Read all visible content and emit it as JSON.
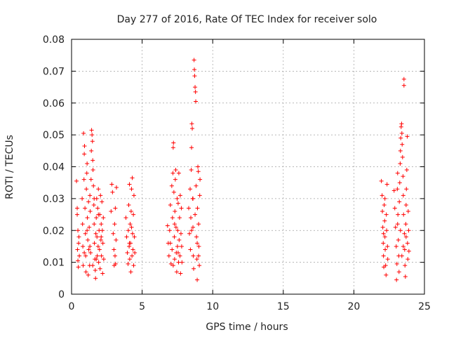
{
  "chart_data": {
    "type": "scatter",
    "title": "Day 277 of 2016, Rate Of TEC Index for receiver solo",
    "xlabel": "GPS time / hours",
    "ylabel": "ROTI / TECUs",
    "xlim": [
      0,
      25
    ],
    "ylim": [
      0,
      0.08
    ],
    "grid": true,
    "marker": "+",
    "colors": {
      "points": "#ff0000",
      "grid": "#a0a0a0",
      "axis": "#000000"
    },
    "x_ticks": [
      {
        "value": 0,
        "label": "0"
      },
      {
        "value": 5,
        "label": "5"
      },
      {
        "value": 10,
        "label": "10"
      },
      {
        "value": 15,
        "label": "15"
      },
      {
        "value": 20,
        "label": "20"
      },
      {
        "value": 25,
        "label": "25"
      }
    ],
    "y_ticks": [
      {
        "value": 0,
        "label": "0"
      },
      {
        "value": 0.01,
        "label": "0.01"
      },
      {
        "value": 0.02,
        "label": "0.02"
      },
      {
        "value": 0.03,
        "label": "0.03"
      },
      {
        "value": 0.04,
        "label": "0.04"
      },
      {
        "value": 0.05,
        "label": "0.05"
      },
      {
        "value": 0.06,
        "label": "0.06"
      },
      {
        "value": 0.07,
        "label": "0.07"
      },
      {
        "value": 0.08,
        "label": "0.08"
      }
    ],
    "points": [
      [
        0.35,
        0.0355
      ],
      [
        0.4,
        0.025
      ],
      [
        0.42,
        0.014
      ],
      [
        0.45,
        0.02
      ],
      [
        0.48,
        0.0085
      ],
      [
        0.5,
        0.016
      ],
      [
        0.52,
        0.018
      ],
      [
        0.55,
        0.012
      ],
      [
        0.4,
        0.027
      ],
      [
        0.45,
        0.0105
      ],
      [
        0.75,
        0.03
      ],
      [
        0.78,
        0.022
      ],
      [
        0.8,
        0.015
      ],
      [
        0.82,
        0.009
      ],
      [
        0.85,
        0.0505
      ],
      [
        0.88,
        0.036
      ],
      [
        0.9,
        0.044
      ],
      [
        0.92,
        0.0465
      ],
      [
        0.95,
        0.027
      ],
      [
        0.98,
        0.019
      ],
      [
        1.0,
        0.012
      ],
      [
        1.02,
        0.007
      ],
      [
        1.05,
        0.033
      ],
      [
        1.08,
        0.038
      ],
      [
        1.1,
        0.041
      ],
      [
        1.12,
        0.024
      ],
      [
        1.15,
        0.017
      ],
      [
        1.18,
        0.006
      ],
      [
        1.2,
        0.029
      ],
      [
        1.22,
        0.014
      ],
      [
        1.25,
        0.021
      ],
      [
        1.28,
        0.009
      ],
      [
        1.3,
        0.031
      ],
      [
        1.32,
        0.026
      ],
      [
        1.35,
        0.013
      ],
      [
        1.38,
        0.036
      ],
      [
        1.4,
        0.045
      ],
      [
        1.42,
        0.0515
      ],
      [
        1.45,
        0.05
      ],
      [
        1.48,
        0.048
      ],
      [
        1.5,
        0.042
      ],
      [
        1.52,
        0.039
      ],
      [
        1.55,
        0.034
      ],
      [
        1.58,
        0.028
      ],
      [
        1.6,
        0.022
      ],
      [
        1.62,
        0.016
      ],
      [
        1.65,
        0.011
      ],
      [
        1.68,
        0.0075
      ],
      [
        1.7,
        0.005
      ],
      [
        1.72,
        0.019
      ],
      [
        1.75,
        0.024
      ],
      [
        1.78,
        0.03
      ],
      [
        1.8,
        0.018
      ],
      [
        1.82,
        0.012
      ],
      [
        1.85,
        0.027
      ],
      [
        1.88,
        0.015
      ],
      [
        1.9,
        0.033
      ],
      [
        1.92,
        0.01
      ],
      [
        1.95,
        0.02
      ],
      [
        1.98,
        0.014
      ],
      [
        2.0,
        0.025
      ],
      [
        2.02,
        0.008
      ],
      [
        2.05,
        0.031
      ],
      [
        2.08,
        0.017
      ],
      [
        2.1,
        0.022
      ],
      [
        2.12,
        0.012
      ],
      [
        2.15,
        0.029
      ],
      [
        2.18,
        0.02
      ],
      [
        2.2,
        0.0065
      ],
      [
        2.22,
        0.016
      ],
      [
        2.25,
        0.024
      ],
      [
        2.28,
        0.011
      ],
      [
        1.1,
        0.02
      ],
      [
        1.3,
        0.015
      ],
      [
        1.6,
        0.03
      ],
      [
        1.9,
        0.025
      ],
      [
        2.1,
        0.018
      ],
      [
        0.9,
        0.013
      ],
      [
        1.5,
        0.009
      ],
      [
        1.75,
        0.011
      ],
      [
        2.8,
        0.026
      ],
      [
        2.85,
        0.0345
      ],
      [
        2.9,
        0.032
      ],
      [
        2.95,
        0.019
      ],
      [
        3.0,
        0.014
      ],
      [
        3.02,
        0.009
      ],
      [
        3.05,
        0.022
      ],
      [
        3.08,
        0.012
      ],
      [
        3.1,
        0.027
      ],
      [
        3.12,
        0.0095
      ],
      [
        3.15,
        0.017
      ],
      [
        3.18,
        0.0335
      ],
      [
        3.85,
        0.024
      ],
      [
        3.9,
        0.018
      ],
      [
        3.95,
        0.013
      ],
      [
        4.0,
        0.0095
      ],
      [
        4.02,
        0.02
      ],
      [
        4.05,
        0.028
      ],
      [
        4.08,
        0.015
      ],
      [
        4.1,
        0.0345
      ],
      [
        4.12,
        0.011
      ],
      [
        4.15,
        0.022
      ],
      [
        4.18,
        0.016
      ],
      [
        4.2,
        0.007
      ],
      [
        4.22,
        0.026
      ],
      [
        4.25,
        0.033
      ],
      [
        4.28,
        0.012
      ],
      [
        4.3,
        0.0365
      ],
      [
        4.32,
        0.019
      ],
      [
        4.35,
        0.014
      ],
      [
        4.38,
        0.025
      ],
      [
        4.4,
        0.009
      ],
      [
        4.42,
        0.031
      ],
      [
        4.45,
        0.018
      ],
      [
        4.48,
        0.013
      ],
      [
        4.1,
        0.016
      ],
      [
        4.25,
        0.021
      ],
      [
        6.8,
        0.0215
      ],
      [
        6.85,
        0.016
      ],
      [
        6.9,
        0.012
      ],
      [
        6.95,
        0.02
      ],
      [
        7.0,
        0.028
      ],
      [
        7.05,
        0.0095
      ],
      [
        7.1,
        0.034
      ],
      [
        7.12,
        0.014
      ],
      [
        7.15,
        0.024
      ],
      [
        7.18,
        0.038
      ],
      [
        7.2,
        0.046
      ],
      [
        7.22,
        0.0475
      ],
      [
        7.25,
        0.032
      ],
      [
        7.28,
        0.018
      ],
      [
        7.3,
        0.011
      ],
      [
        7.32,
        0.026
      ],
      [
        7.35,
        0.036
      ],
      [
        7.38,
        0.039
      ],
      [
        7.4,
        0.021
      ],
      [
        7.42,
        0.013
      ],
      [
        7.45,
        0.007
      ],
      [
        7.48,
        0.03
      ],
      [
        7.5,
        0.015
      ],
      [
        7.52,
        0.02
      ],
      [
        7.55,
        0.0285
      ],
      [
        7.58,
        0.01
      ],
      [
        7.6,
        0.038
      ],
      [
        7.62,
        0.017
      ],
      [
        7.65,
        0.024
      ],
      [
        7.68,
        0.012
      ],
      [
        7.7,
        0.031
      ],
      [
        7.72,
        0.0065
      ],
      [
        7.75,
        0.019
      ],
      [
        7.78,
        0.027
      ],
      [
        7.8,
        0.015
      ],
      [
        7.82,
        0.01
      ],
      [
        7.0,
        0.016
      ],
      [
        7.3,
        0.022
      ],
      [
        7.55,
        0.013
      ],
      [
        7.2,
        0.009
      ],
      [
        8.3,
        0.027
      ],
      [
        8.35,
        0.019
      ],
      [
        8.4,
        0.033
      ],
      [
        8.42,
        0.014
      ],
      [
        8.45,
        0.024
      ],
      [
        8.48,
        0.039
      ],
      [
        8.5,
        0.046
      ],
      [
        8.52,
        0.0535
      ],
      [
        8.55,
        0.052
      ],
      [
        8.58,
        0.03
      ],
      [
        8.6,
        0.021
      ],
      [
        8.62,
        0.012
      ],
      [
        8.65,
        0.008
      ],
      [
        8.68,
        0.0735
      ],
      [
        8.7,
        0.0705
      ],
      [
        8.72,
        0.0685
      ],
      [
        8.75,
        0.065
      ],
      [
        8.78,
        0.0635
      ],
      [
        8.8,
        0.0605
      ],
      [
        8.82,
        0.034
      ],
      [
        8.85,
        0.018
      ],
      [
        8.88,
        0.011
      ],
      [
        8.9,
        0.0045
      ],
      [
        8.92,
        0.027
      ],
      [
        8.95,
        0.04
      ],
      [
        8.98,
        0.0385
      ],
      [
        9.0,
        0.022
      ],
      [
        9.02,
        0.015
      ],
      [
        9.05,
        0.009
      ],
      [
        9.08,
        0.031
      ],
      [
        9.1,
        0.036
      ],
      [
        8.5,
        0.02
      ],
      [
        8.75,
        0.025
      ],
      [
        8.9,
        0.016
      ],
      [
        8.6,
        0.03
      ],
      [
        9.0,
        0.012
      ],
      [
        21.95,
        0.0355
      ],
      [
        22.0,
        0.031
      ],
      [
        22.02,
        0.026
      ],
      [
        22.05,
        0.021
      ],
      [
        22.08,
        0.016
      ],
      [
        22.1,
        0.012
      ],
      [
        22.12,
        0.0085
      ],
      [
        22.15,
        0.028
      ],
      [
        22.18,
        0.023
      ],
      [
        22.2,
        0.018
      ],
      [
        22.22,
        0.014
      ],
      [
        22.25,
        0.009
      ],
      [
        22.28,
        0.006
      ],
      [
        22.3,
        0.025
      ],
      [
        22.32,
        0.02
      ],
      [
        22.35,
        0.0345
      ],
      [
        22.38,
        0.015
      ],
      [
        22.4,
        0.011
      ],
      [
        22.2,
        0.03
      ],
      [
        22.1,
        0.019
      ],
      [
        22.85,
        0.0325
      ],
      [
        22.9,
        0.027
      ],
      [
        22.95,
        0.021
      ],
      [
        23.0,
        0.015
      ],
      [
        23.02,
        0.0045
      ],
      [
        23.05,
        0.0095
      ],
      [
        23.08,
        0.033
      ],
      [
        23.1,
        0.038
      ],
      [
        23.12,
        0.025
      ],
      [
        23.15,
        0.017
      ],
      [
        23.18,
        0.012
      ],
      [
        23.2,
        0.007
      ],
      [
        23.22,
        0.029
      ],
      [
        23.25,
        0.035
      ],
      [
        23.28,
        0.041
      ],
      [
        23.3,
        0.045
      ],
      [
        23.32,
        0.049
      ],
      [
        23.35,
        0.0525
      ],
      [
        23.38,
        0.0535
      ],
      [
        23.4,
        0.0505
      ],
      [
        23.42,
        0.047
      ],
      [
        23.45,
        0.043
      ],
      [
        23.48,
        0.037
      ],
      [
        23.5,
        0.031
      ],
      [
        23.52,
        0.025
      ],
      [
        23.55,
        0.0675
      ],
      [
        23.55,
        0.0655
      ],
      [
        23.58,
        0.019
      ],
      [
        23.6,
        0.014
      ],
      [
        23.62,
        0.009
      ],
      [
        23.65,
        0.0055
      ],
      [
        23.68,
        0.022
      ],
      [
        23.7,
        0.028
      ],
      [
        23.72,
        0.033
      ],
      [
        23.75,
        0.039
      ],
      [
        23.78,
        0.0495
      ],
      [
        23.8,
        0.016
      ],
      [
        23.82,
        0.011
      ],
      [
        23.85,
        0.026
      ],
      [
        23.88,
        0.02
      ],
      [
        23.9,
        0.0135
      ],
      [
        23.3,
        0.02
      ],
      [
        23.5,
        0.015
      ],
      [
        23.7,
        0.018
      ],
      [
        23.1,
        0.022
      ],
      [
        23.4,
        0.012
      ]
    ]
  }
}
